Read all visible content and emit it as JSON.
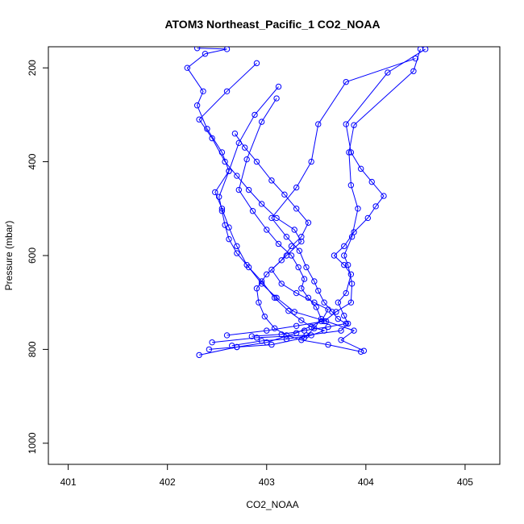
{
  "chart_data": {
    "type": "line",
    "title": "ATOM3 Northeast_Pacific_1 CO2_NOAA",
    "xlabel": "CO2_NOAA",
    "ylabel": "Pressure (mbar)",
    "xlim": [
      400.8,
      405.35
    ],
    "ylim": [
      1045,
      155
    ],
    "y_reversed": true,
    "x_ticks": [
      401,
      402,
      403,
      404,
      405
    ],
    "y_ticks": [
      200,
      400,
      600,
      800,
      1000
    ],
    "grid": false,
    "legend": "none",
    "color": "#0000ff",
    "marker": "open-circle",
    "series": [
      {
        "x": [
          403.98,
          403.75,
          403.88,
          403.6,
          403.28,
          403.1,
          402.95,
          402.8,
          402.7,
          402.62,
          402.55,
          402.48,
          402.62,
          402.55,
          402.4,
          402.3,
          402.36,
          402.2,
          402.38,
          402.6,
          402.3
        ],
        "y": [
          803,
          780,
          760,
          740,
          720,
          690,
          660,
          620,
          580,
          540,
          500,
          465,
          420,
          380,
          330,
          280,
          250,
          200,
          170,
          160,
          158
        ]
      },
      {
        "x": [
          402.32,
          402.7,
          403.0,
          403.3,
          403.55,
          403.62,
          403.48,
          403.3,
          403.15,
          403.05,
          403.2,
          403.35,
          403.28,
          403.1,
          402.95,
          402.82,
          402.7,
          402.58,
          402.45,
          402.32,
          402.6,
          402.9
        ],
        "y": [
          812,
          795,
          785,
          765,
          740,
          715,
          700,
          680,
          660,
          630,
          600,
          570,
          545,
          520,
          490,
          460,
          430,
          400,
          350,
          310,
          250,
          190
        ]
      },
      {
        "x": [
          402.45,
          402.9,
          403.4,
          403.75,
          403.82,
          403.78,
          403.72,
          403.8,
          403.85,
          403.78,
          403.68,
          403.78,
          403.88,
          404.02,
          404.1,
          404.18,
          404.06,
          403.95,
          403.85,
          403.8,
          404.22,
          404.6
        ],
        "y": [
          785,
          775,
          770,
          760,
          745,
          728,
          700,
          680,
          640,
          620,
          600,
          580,
          550,
          520,
          495,
          473,
          443,
          415,
          380,
          320,
          210,
          160
        ]
      },
      {
        "x": [
          402.6,
          403.0,
          403.3,
          403.58,
          403.7,
          403.85,
          403.86,
          403.82,
          403.78,
          403.86,
          403.92,
          403.85,
          403.83,
          403.88,
          404.48,
          404.55
        ],
        "y": [
          770,
          760,
          750,
          740,
          720,
          700,
          660,
          620,
          600,
          560,
          500,
          450,
          380,
          322,
          207,
          160
        ]
      },
      {
        "x": [
          403.95,
          403.62,
          403.35,
          403.2,
          403.08,
          402.98,
          402.92,
          402.9,
          403.0,
          403.15,
          403.25,
          403.35,
          403.42,
          403.3,
          403.18,
          403.05,
          402.9,
          402.78,
          402.68
        ],
        "y": [
          805,
          790,
          780,
          770,
          755,
          730,
          700,
          670,
          640,
          610,
          580,
          560,
          530,
          500,
          470,
          440,
          400,
          370,
          340
        ]
      },
      {
        "x": [
          402.42,
          402.7,
          403.05,
          403.38,
          403.48,
          403.55,
          403.5,
          403.42,
          403.35,
          403.38,
          403.32,
          403.25,
          403.12,
          403.0,
          402.86,
          402.72,
          402.8,
          402.95,
          403.1
        ],
        "y": [
          800,
          795,
          790,
          775,
          755,
          735,
          710,
          690,
          670,
          650,
          625,
          600,
          575,
          545,
          505,
          460,
          395,
          315,
          265
        ]
      },
      {
        "x": [
          402.85,
          403.15,
          403.38,
          403.62,
          403.8,
          403.72,
          403.66,
          403.58,
          403.52,
          403.48,
          403.4,
          403.33,
          403.2,
          403.05,
          403.3,
          403.45,
          403.52,
          403.8,
          404.5
        ],
        "y": [
          772,
          768,
          760,
          752,
          745,
          735,
          720,
          700,
          675,
          655,
          625,
          590,
          560,
          520,
          455,
          400,
          320,
          230,
          180
        ]
      },
      {
        "x": [
          402.65,
          402.95,
          403.2,
          403.45,
          403.58,
          403.45,
          403.35,
          403.22,
          403.08,
          402.95,
          402.82,
          402.7,
          402.62,
          402.58,
          402.55,
          402.52,
          402.62,
          402.72,
          402.88,
          403.12
        ],
        "y": [
          792,
          782,
          778,
          770,
          760,
          752,
          738,
          718,
          690,
          655,
          625,
          595,
          565,
          535,
          505,
          475,
          420,
          360,
          300,
          240
        ]
      }
    ]
  }
}
